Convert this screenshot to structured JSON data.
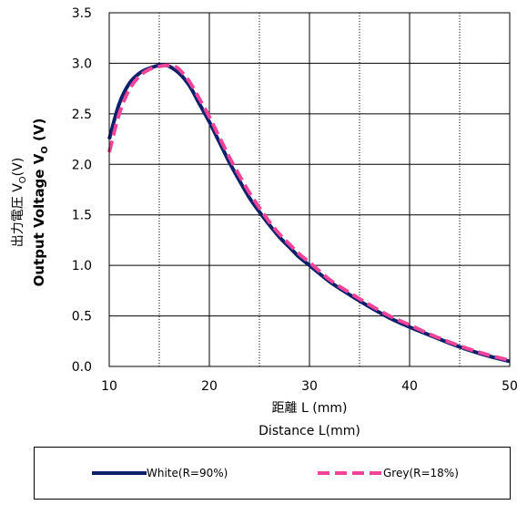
{
  "chart_data": {
    "type": "line",
    "title": "",
    "xlabel_jp": "距離 L (mm)",
    "xlabel_en": "Distance L(mm)",
    "ylabel_jp": "出力電圧 V",
    "ylabel_jp_sub": "O",
    "ylabel_jp_unit": "(V)",
    "ylabel_en": "Output Voltage V",
    "ylabel_en_sub": "O",
    "ylabel_en_unit": " (V)",
    "xlim": [
      10,
      50
    ],
    "ylim": [
      0.0,
      3.5
    ],
    "x_ticks": [
      10,
      20,
      30,
      40,
      50
    ],
    "x_tick_labels": [
      "10",
      "20",
      "30",
      "40",
      "50"
    ],
    "x_minor_grid": [
      15,
      25,
      35,
      45
    ],
    "y_ticks": [
      0.0,
      0.5,
      1.0,
      1.5,
      2.0,
      2.5,
      3.0,
      3.5
    ],
    "y_tick_labels": [
      "0.0",
      "0.5",
      "1.0",
      "1.5",
      "2.0",
      "2.5",
      "3.0",
      "3.5"
    ],
    "grid": true,
    "legend_position": "bottom",
    "series": [
      {
        "name": "White(R=90%)",
        "color": "#0b1f6b",
        "dash": "solid",
        "x": [
          10,
          11,
          12,
          13,
          14,
          15,
          15.5,
          16,
          17,
          18,
          19,
          20,
          21,
          22,
          23,
          24,
          25,
          26,
          27,
          28,
          29,
          30,
          32,
          34,
          36,
          38,
          40,
          42,
          44,
          46,
          48,
          50
        ],
        "y": [
          2.25,
          2.6,
          2.8,
          2.9,
          2.95,
          2.98,
          2.98,
          2.97,
          2.9,
          2.78,
          2.6,
          2.42,
          2.22,
          2.02,
          1.84,
          1.67,
          1.53,
          1.4,
          1.28,
          1.18,
          1.08,
          1.0,
          0.84,
          0.71,
          0.59,
          0.48,
          0.39,
          0.31,
          0.23,
          0.16,
          0.1,
          0.05
        ]
      },
      {
        "name": "Grey(R=18%)",
        "color": "#f0449a",
        "dash": "dashed",
        "x": [
          10,
          11,
          12,
          13,
          14,
          15,
          16,
          16.5,
          17,
          18,
          19,
          20,
          21,
          22,
          23,
          24,
          25,
          26,
          27,
          28,
          29,
          30,
          32,
          34,
          36,
          38,
          40,
          42,
          44,
          46,
          48,
          50
        ],
        "y": [
          2.12,
          2.5,
          2.74,
          2.87,
          2.94,
          2.97,
          2.98,
          2.97,
          2.94,
          2.82,
          2.65,
          2.47,
          2.27,
          2.07,
          1.89,
          1.72,
          1.57,
          1.43,
          1.31,
          1.21,
          1.11,
          1.03,
          0.86,
          0.73,
          0.61,
          0.5,
          0.41,
          0.32,
          0.24,
          0.17,
          0.11,
          0.06
        ]
      }
    ]
  },
  "legend": {
    "white_label": "White(R=90%)",
    "grey_label": "Grey(R=18%)"
  }
}
